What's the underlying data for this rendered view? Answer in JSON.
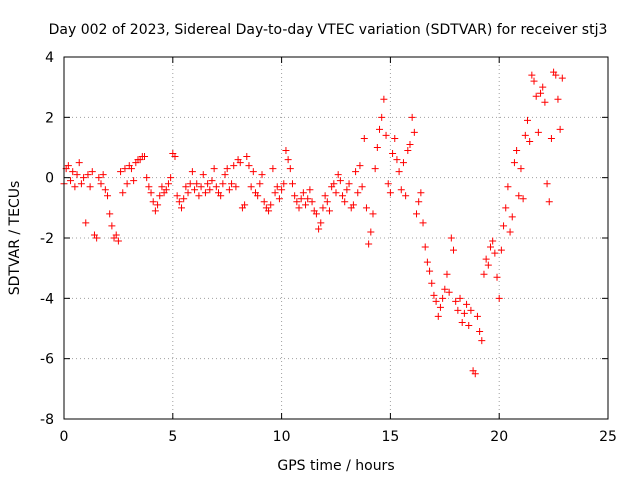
{
  "chart_data": {
    "type": "scatter",
    "title": "Day 002 of 2023, Sidereal Day-to-day VTEC variation (SDTVAR) for receiver stj3",
    "xlabel": "GPS time / hours",
    "ylabel": "SDTVAR / TECUs",
    "xlim": [
      0,
      25
    ],
    "ylim": [
      -8,
      4
    ],
    "xticks": [
      0,
      5,
      10,
      15,
      20,
      25
    ],
    "yticks": [
      -8,
      -6,
      -4,
      -2,
      0,
      2,
      4
    ],
    "xtick_labels": [
      "0",
      "5",
      "10",
      "15",
      "20",
      "25"
    ],
    "ytick_labels": [
      "-8",
      "-6",
      "-4",
      "-2",
      "0",
      "2",
      "4"
    ],
    "grid": true,
    "marker": "+",
    "marker_color": "#ff0000",
    "series": [
      {
        "name": "SDTVAR",
        "points": [
          [
            0.0,
            -0.2
          ],
          [
            0.1,
            0.3
          ],
          [
            0.2,
            0.4
          ],
          [
            0.3,
            -0.1
          ],
          [
            0.4,
            0.2
          ],
          [
            0.5,
            -0.3
          ],
          [
            0.6,
            0.1
          ],
          [
            0.7,
            0.5
          ],
          [
            0.8,
            -0.2
          ],
          [
            0.9,
            0.0
          ],
          [
            1.0,
            -1.5
          ],
          [
            1.1,
            0.1
          ],
          [
            1.2,
            -0.3
          ],
          [
            1.3,
            0.2
          ],
          [
            1.4,
            -1.9
          ],
          [
            1.5,
            -2.0
          ],
          [
            1.6,
            0.0
          ],
          [
            1.7,
            -0.2
          ],
          [
            1.8,
            0.1
          ],
          [
            1.9,
            -0.4
          ],
          [
            2.0,
            -0.6
          ],
          [
            2.1,
            -1.2
          ],
          [
            2.2,
            -1.6
          ],
          [
            2.3,
            -2.0
          ],
          [
            2.4,
            -1.9
          ],
          [
            2.5,
            -2.1
          ],
          [
            2.6,
            0.2
          ],
          [
            2.7,
            -0.5
          ],
          [
            2.8,
            0.3
          ],
          [
            2.9,
            -0.2
          ],
          [
            3.0,
            0.4
          ],
          [
            3.1,
            0.3
          ],
          [
            3.2,
            -0.1
          ],
          [
            3.3,
            0.5
          ],
          [
            3.4,
            0.6
          ],
          [
            3.5,
            0.6
          ],
          [
            3.6,
            0.7
          ],
          [
            3.7,
            0.7
          ],
          [
            3.8,
            0.0
          ],
          [
            3.9,
            -0.3
          ],
          [
            4.0,
            -0.5
          ],
          [
            4.1,
            -0.8
          ],
          [
            4.2,
            -1.1
          ],
          [
            4.3,
            -0.9
          ],
          [
            4.4,
            -0.6
          ],
          [
            4.5,
            -0.3
          ],
          [
            4.6,
            -0.5
          ],
          [
            4.7,
            -0.4
          ],
          [
            4.8,
            -0.2
          ],
          [
            4.9,
            0.0
          ],
          [
            5.0,
            0.8
          ],
          [
            5.1,
            0.7
          ],
          [
            5.2,
            -0.6
          ],
          [
            5.3,
            -0.8
          ],
          [
            5.4,
            -1.0
          ],
          [
            5.5,
            -0.7
          ],
          [
            5.6,
            -0.3
          ],
          [
            5.7,
            -0.5
          ],
          [
            5.8,
            -0.2
          ],
          [
            5.9,
            0.2
          ],
          [
            6.0,
            -0.4
          ],
          [
            6.1,
            -0.2
          ],
          [
            6.2,
            -0.6
          ],
          [
            6.3,
            -0.3
          ],
          [
            6.4,
            0.1
          ],
          [
            6.5,
            -0.5
          ],
          [
            6.6,
            -0.2
          ],
          [
            6.7,
            -0.4
          ],
          [
            6.8,
            -0.1
          ],
          [
            6.9,
            0.3
          ],
          [
            7.0,
            -0.3
          ],
          [
            7.1,
            -0.5
          ],
          [
            7.2,
            -0.6
          ],
          [
            7.3,
            -0.2
          ],
          [
            7.4,
            0.1
          ],
          [
            7.5,
            0.3
          ],
          [
            7.6,
            -0.4
          ],
          [
            7.7,
            -0.2
          ],
          [
            7.8,
            0.4
          ],
          [
            7.9,
            -0.3
          ],
          [
            8.0,
            0.6
          ],
          [
            8.1,
            0.5
          ],
          [
            8.2,
            -1.0
          ],
          [
            8.3,
            -0.9
          ],
          [
            8.4,
            0.7
          ],
          [
            8.5,
            0.4
          ],
          [
            8.6,
            -0.3
          ],
          [
            8.7,
            0.2
          ],
          [
            8.8,
            -0.5
          ],
          [
            8.9,
            -0.6
          ],
          [
            9.0,
            -0.2
          ],
          [
            9.1,
            0.1
          ],
          [
            9.2,
            -0.8
          ],
          [
            9.3,
            -1.0
          ],
          [
            9.4,
            -1.1
          ],
          [
            9.5,
            -0.9
          ],
          [
            9.6,
            0.3
          ],
          [
            9.7,
            -0.5
          ],
          [
            9.8,
            -0.3
          ],
          [
            9.9,
            -0.7
          ],
          [
            10.0,
            -0.4
          ],
          [
            10.1,
            -0.2
          ],
          [
            10.2,
            0.9
          ],
          [
            10.3,
            0.6
          ],
          [
            10.4,
            0.3
          ],
          [
            10.5,
            -0.2
          ],
          [
            10.6,
            -0.6
          ],
          [
            10.7,
            -0.8
          ],
          [
            10.8,
            -1.0
          ],
          [
            10.9,
            -0.7
          ],
          [
            11.0,
            -0.5
          ],
          [
            11.1,
            -0.9
          ],
          [
            11.2,
            -0.7
          ],
          [
            11.3,
            -0.4
          ],
          [
            11.4,
            -0.8
          ],
          [
            11.5,
            -1.1
          ],
          [
            11.6,
            -1.2
          ],
          [
            11.7,
            -1.7
          ],
          [
            11.8,
            -1.5
          ],
          [
            11.9,
            -1.0
          ],
          [
            12.0,
            -0.6
          ],
          [
            12.1,
            -0.8
          ],
          [
            12.2,
            -1.1
          ],
          [
            12.3,
            -0.3
          ],
          [
            12.4,
            -0.2
          ],
          [
            12.5,
            -0.5
          ],
          [
            12.6,
            0.1
          ],
          [
            12.7,
            -0.1
          ],
          [
            12.8,
            -0.6
          ],
          [
            12.9,
            -0.8
          ],
          [
            13.0,
            -0.4
          ],
          [
            13.1,
            -0.2
          ],
          [
            13.2,
            -1.0
          ],
          [
            13.3,
            -0.9
          ],
          [
            13.4,
            0.2
          ],
          [
            13.5,
            -0.5
          ],
          [
            13.6,
            0.4
          ],
          [
            13.7,
            -0.3
          ],
          [
            13.8,
            1.3
          ],
          [
            13.9,
            -1.0
          ],
          [
            14.0,
            -2.2
          ],
          [
            14.1,
            -1.8
          ],
          [
            14.2,
            -1.2
          ],
          [
            14.3,
            0.3
          ],
          [
            14.4,
            1.0
          ],
          [
            14.5,
            1.6
          ],
          [
            14.6,
            2.0
          ],
          [
            14.7,
            2.6
          ],
          [
            14.8,
            1.4
          ],
          [
            14.9,
            -0.2
          ],
          [
            15.0,
            -0.5
          ],
          [
            15.1,
            0.8
          ],
          [
            15.2,
            1.3
          ],
          [
            15.3,
            0.6
          ],
          [
            15.4,
            0.2
          ],
          [
            15.5,
            -0.4
          ],
          [
            15.6,
            0.5
          ],
          [
            15.7,
            -0.6
          ],
          [
            15.8,
            0.9
          ],
          [
            15.9,
            1.1
          ],
          [
            16.0,
            2.0
          ],
          [
            16.1,
            1.5
          ],
          [
            16.2,
            -1.2
          ],
          [
            16.3,
            -0.8
          ],
          [
            16.4,
            -0.5
          ],
          [
            16.5,
            -1.5
          ],
          [
            16.6,
            -2.3
          ],
          [
            16.7,
            -2.8
          ],
          [
            16.8,
            -3.1
          ],
          [
            16.9,
            -3.5
          ],
          [
            17.0,
            -3.9
          ],
          [
            17.1,
            -4.1
          ],
          [
            17.2,
            -4.6
          ],
          [
            17.3,
            -4.3
          ],
          [
            17.4,
            -4.0
          ],
          [
            17.5,
            -3.7
          ],
          [
            17.6,
            -3.2
          ],
          [
            17.7,
            -3.8
          ],
          [
            17.8,
            -2.0
          ],
          [
            17.9,
            -2.4
          ],
          [
            18.0,
            -4.1
          ],
          [
            18.1,
            -4.4
          ],
          [
            18.2,
            -4.0
          ],
          [
            18.3,
            -4.8
          ],
          [
            18.4,
            -4.5
          ],
          [
            18.5,
            -4.2
          ],
          [
            18.6,
            -4.9
          ],
          [
            18.7,
            -4.4
          ],
          [
            18.8,
            -6.4
          ],
          [
            18.9,
            -6.5
          ],
          [
            19.0,
            -4.6
          ],
          [
            19.1,
            -5.1
          ],
          [
            19.2,
            -5.4
          ],
          [
            19.3,
            -3.2
          ],
          [
            19.4,
            -2.7
          ],
          [
            19.5,
            -2.9
          ],
          [
            19.6,
            -2.3
          ],
          [
            19.7,
            -2.1
          ],
          [
            19.8,
            -2.5
          ],
          [
            19.9,
            -3.3
          ],
          [
            20.0,
            -4.0
          ],
          [
            20.1,
            -2.4
          ],
          [
            20.2,
            -1.6
          ],
          [
            20.3,
            -1.0
          ],
          [
            20.4,
            -0.3
          ],
          [
            20.5,
            -1.8
          ],
          [
            20.6,
            -1.3
          ],
          [
            20.7,
            0.5
          ],
          [
            20.8,
            0.9
          ],
          [
            20.9,
            -0.6
          ],
          [
            21.0,
            0.3
          ],
          [
            21.1,
            -0.7
          ],
          [
            21.2,
            1.4
          ],
          [
            21.3,
            1.9
          ],
          [
            21.4,
            1.2
          ],
          [
            21.5,
            3.4
          ],
          [
            21.6,
            3.2
          ],
          [
            21.7,
            2.7
          ],
          [
            21.8,
            1.5
          ],
          [
            21.9,
            2.8
          ],
          [
            22.0,
            3.0
          ],
          [
            22.1,
            2.5
          ],
          [
            22.2,
            -0.2
          ],
          [
            22.3,
            -0.8
          ],
          [
            22.4,
            1.3
          ],
          [
            22.5,
            3.5
          ],
          [
            22.6,
            3.4
          ],
          [
            22.7,
            2.6
          ],
          [
            22.8,
            1.6
          ],
          [
            22.9,
            3.3
          ]
        ]
      }
    ]
  }
}
